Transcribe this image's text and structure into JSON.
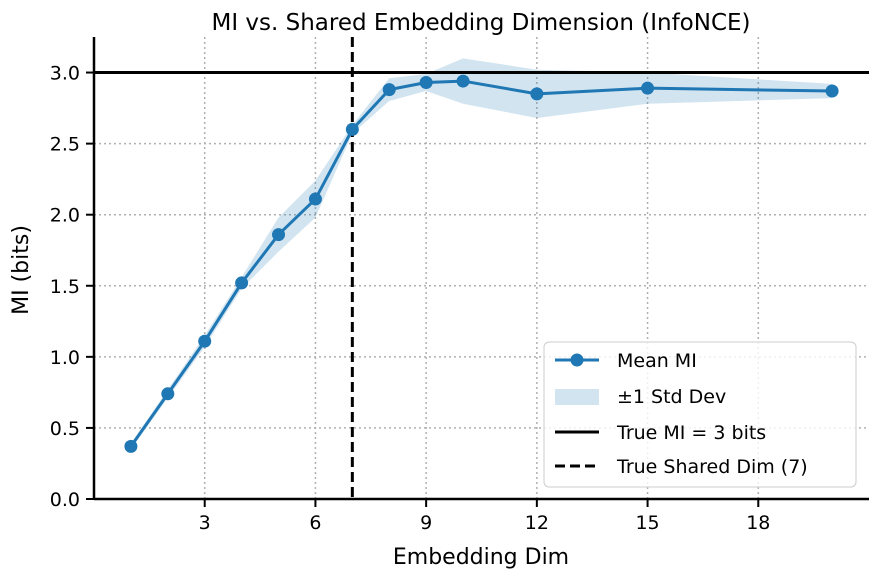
{
  "chart_data": {
    "type": "line",
    "title": "MI vs. Shared Embedding Dimension (InfoNCE)",
    "xlabel": "Embedding Dim",
    "ylabel": "MI (bits)",
    "xlim": [
      0,
      21
    ],
    "ylim": [
      0,
      3.25
    ],
    "xticks": [
      3,
      6,
      9,
      12,
      15,
      18
    ],
    "yticks": [
      0.0,
      0.5,
      1.0,
      1.5,
      2.0,
      2.5,
      3.0
    ],
    "ytick_labels": [
      "0.0",
      "0.5",
      "1.0",
      "1.5",
      "2.0",
      "2.5",
      "3.0"
    ],
    "grid": true,
    "legend_position": "lower-right",
    "series": [
      {
        "name": "Mean MI",
        "x": [
          1,
          2,
          3,
          4,
          5,
          6,
          7,
          8,
          9,
          10,
          12,
          15,
          20
        ],
        "y": [
          0.37,
          0.74,
          1.11,
          1.52,
          1.86,
          2.11,
          2.6,
          2.88,
          2.93,
          2.94,
          2.85,
          2.89,
          2.87
        ],
        "std": [
          0.02,
          0.03,
          0.04,
          0.04,
          0.12,
          0.13,
          0.03,
          0.08,
          0.06,
          0.16,
          0.17,
          0.11,
          0.05
        ],
        "color": "#1f77b4"
      }
    ],
    "band_label": "±1 Std Dev",
    "band_color": "#1f77b4",
    "reference_lines": [
      {
        "orientation": "horizontal",
        "value": 3,
        "style": "solid",
        "label": "True MI = 3 bits",
        "color": "#000000"
      },
      {
        "orientation": "vertical",
        "value": 7,
        "style": "dashed",
        "label": "True Shared Dim (7)",
        "color": "#000000"
      }
    ]
  }
}
